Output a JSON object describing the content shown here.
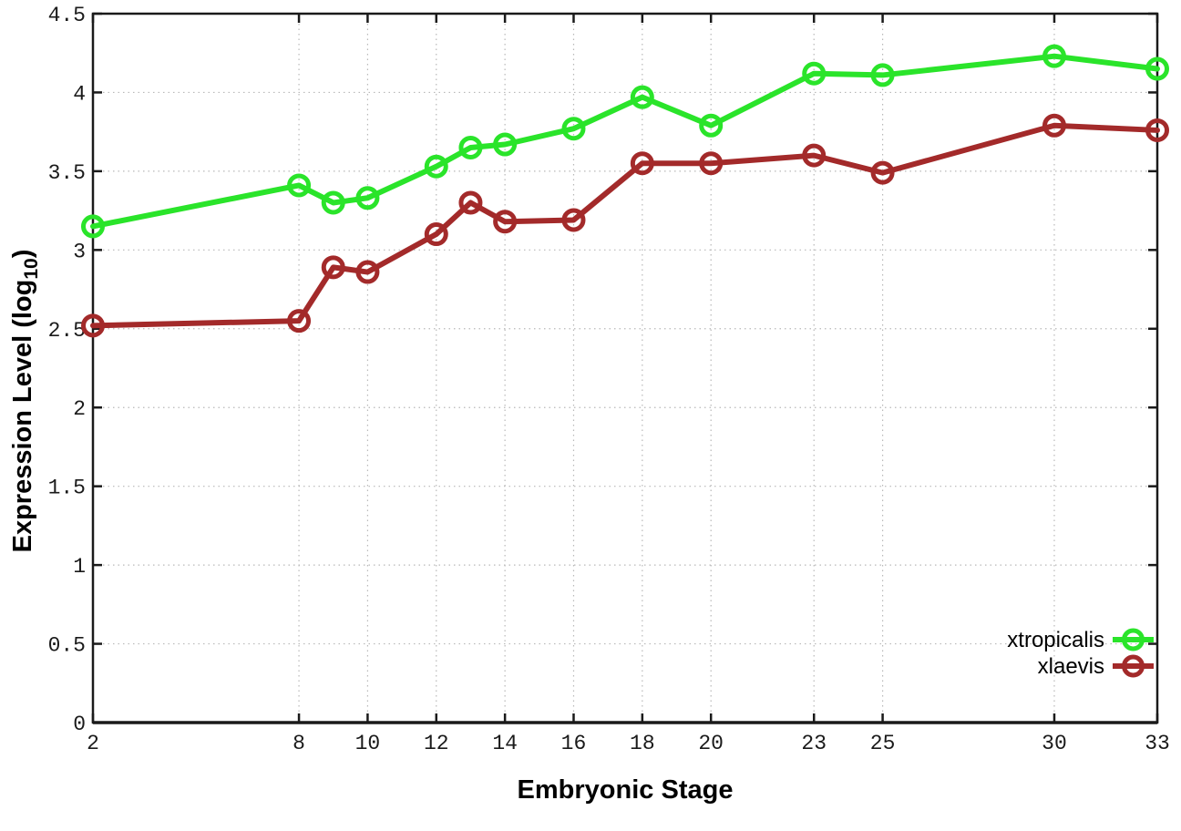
{
  "figure": {
    "background": "#ffffff",
    "border_color": "#1a1a1a",
    "grid_color": "#b8b8b8",
    "ylabel_prefix": "Expression Level (log",
    "ylabel_sub": "10",
    "ylabel_suffix": ")"
  },
  "chart_data": {
    "type": "line",
    "title": "",
    "xlabel": "Embryonic Stage",
    "ylabel": "Expression Level (log10)",
    "x": [
      2,
      8,
      9,
      10,
      12,
      13,
      14,
      16,
      18,
      20,
      23,
      25,
      30,
      33
    ],
    "xticks": [
      2,
      8,
      10,
      12,
      14,
      16,
      18,
      20,
      23,
      25,
      30,
      33
    ],
    "yticks": [
      0,
      0.5,
      1,
      1.5,
      2,
      2.5,
      3,
      3.5,
      4,
      4.5
    ],
    "xlim": [
      2,
      33
    ],
    "ylim": [
      0,
      4.5
    ],
    "grid": true,
    "legend_position": "bottom-right",
    "marker": "open-circle",
    "series": [
      {
        "name": "xtropicalis",
        "color": "#2ae42a",
        "values": [
          3.15,
          3.41,
          3.3,
          3.33,
          3.53,
          3.65,
          3.67,
          3.77,
          3.97,
          3.79,
          4.12,
          4.11,
          4.23,
          4.15
        ]
      },
      {
        "name": "xlaevis",
        "color": "#a32a2a",
        "values": [
          2.52,
          2.55,
          2.89,
          2.86,
          3.1,
          3.3,
          3.18,
          3.19,
          3.55,
          3.55,
          3.6,
          3.49,
          3.79,
          3.76
        ]
      }
    ]
  }
}
